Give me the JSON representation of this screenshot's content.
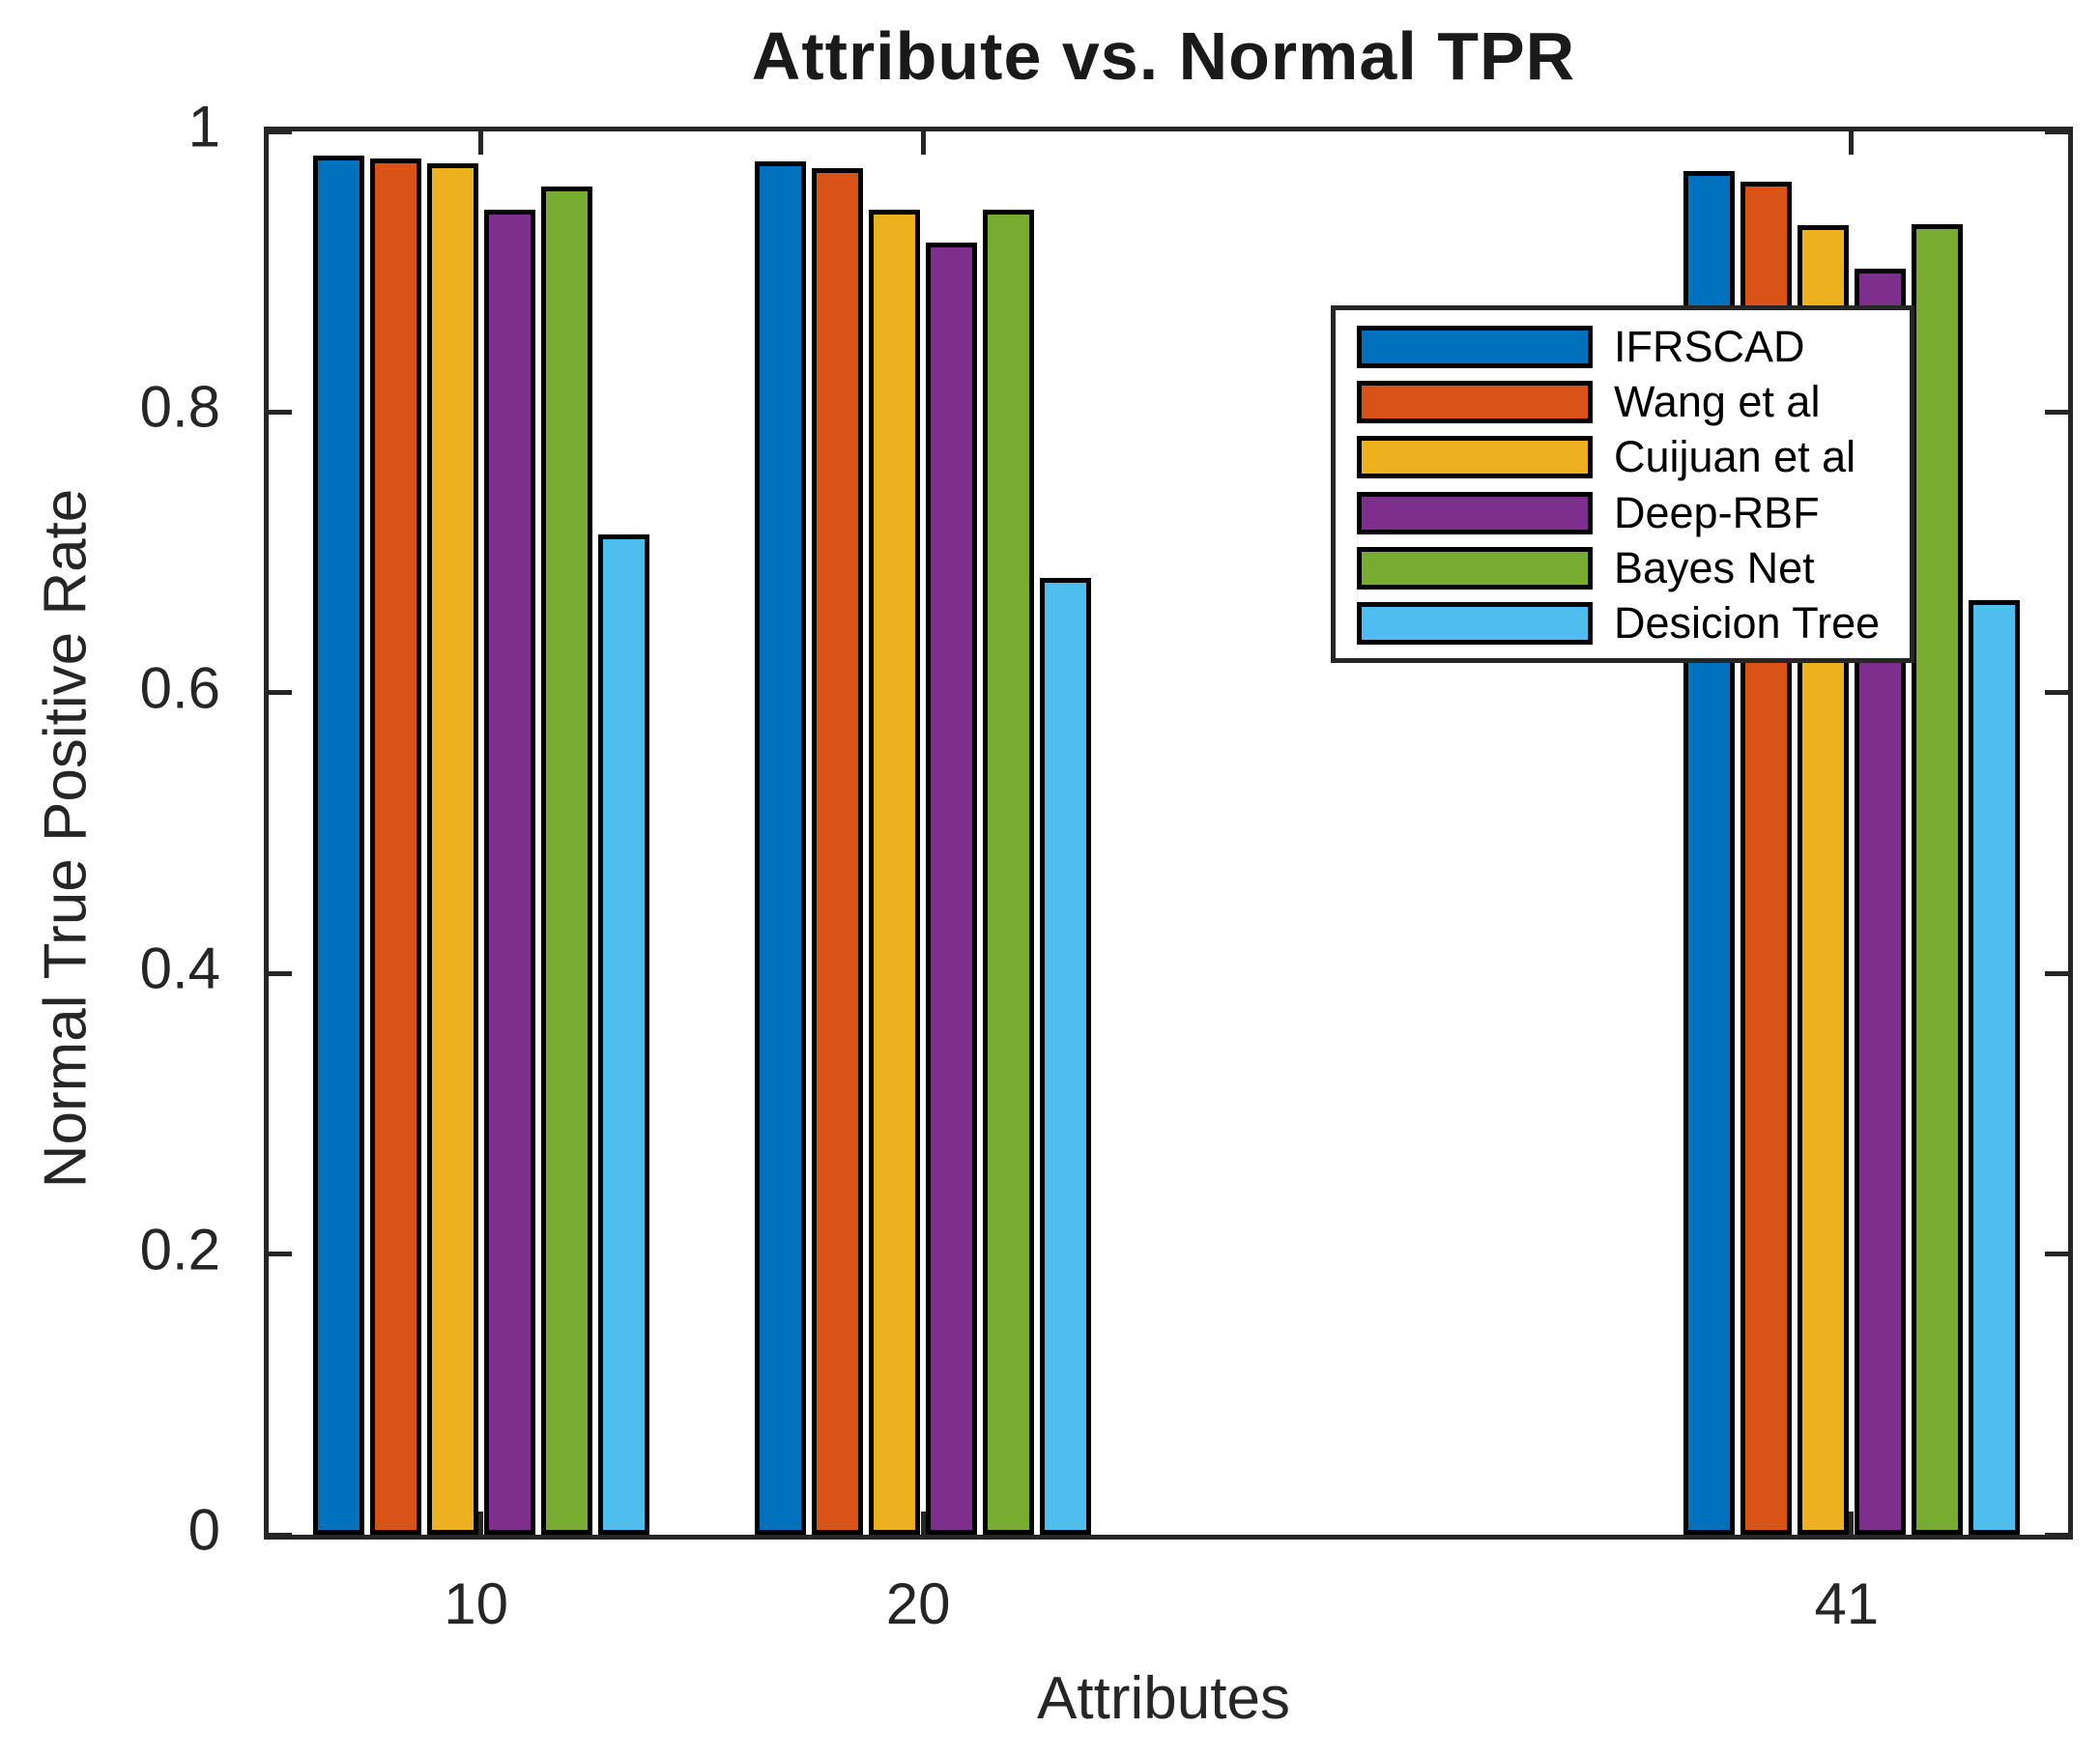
{
  "title": "Attribute vs. Normal TPR",
  "chart_data": {
    "type": "bar",
    "title": "Attribute vs. Normal TPR",
    "xlabel": "Attributes",
    "ylabel": "Normal True Positive Rate",
    "categories": [
      "10",
      "20",
      "41"
    ],
    "x_numeric": [
      10,
      20,
      41
    ],
    "xlim": [
      5.2,
      45.9
    ],
    "ylim": [
      0,
      1
    ],
    "y_ticks": [
      0,
      0.2,
      0.4,
      0.6,
      0.8,
      1
    ],
    "y_tick_labels": [
      "0",
      "0.2",
      "0.4",
      "0.6",
      "0.8",
      "1"
    ],
    "grid": false,
    "legend_position": "upper-right-inside",
    "bar_edge_color": "#000000",
    "axis_color": "#262626",
    "bar_width_units": 1.16,
    "bar_pitch_units": 1.29,
    "series": [
      {
        "name": "IFRSCAD",
        "color": "#0072BD",
        "values": [
          0.983,
          0.979,
          0.972
        ]
      },
      {
        "name": "Wang et al",
        "color": "#D95319",
        "values": [
          0.981,
          0.974,
          0.964
        ]
      },
      {
        "name": "Cuijuan et al",
        "color": "#EDB120",
        "values": [
          0.977,
          0.944,
          0.933
        ]
      },
      {
        "name": "Deep-RBF",
        "color": "#7E2F8E",
        "values": [
          0.944,
          0.921,
          0.902
        ]
      },
      {
        "name": "Bayes Net",
        "color": "#77AC30",
        "values": [
          0.961,
          0.944,
          0.934
        ]
      },
      {
        "name": "Desicion Tree",
        "color": "#4DBEEE",
        "values": [
          0.713,
          0.682,
          0.666
        ]
      }
    ]
  }
}
